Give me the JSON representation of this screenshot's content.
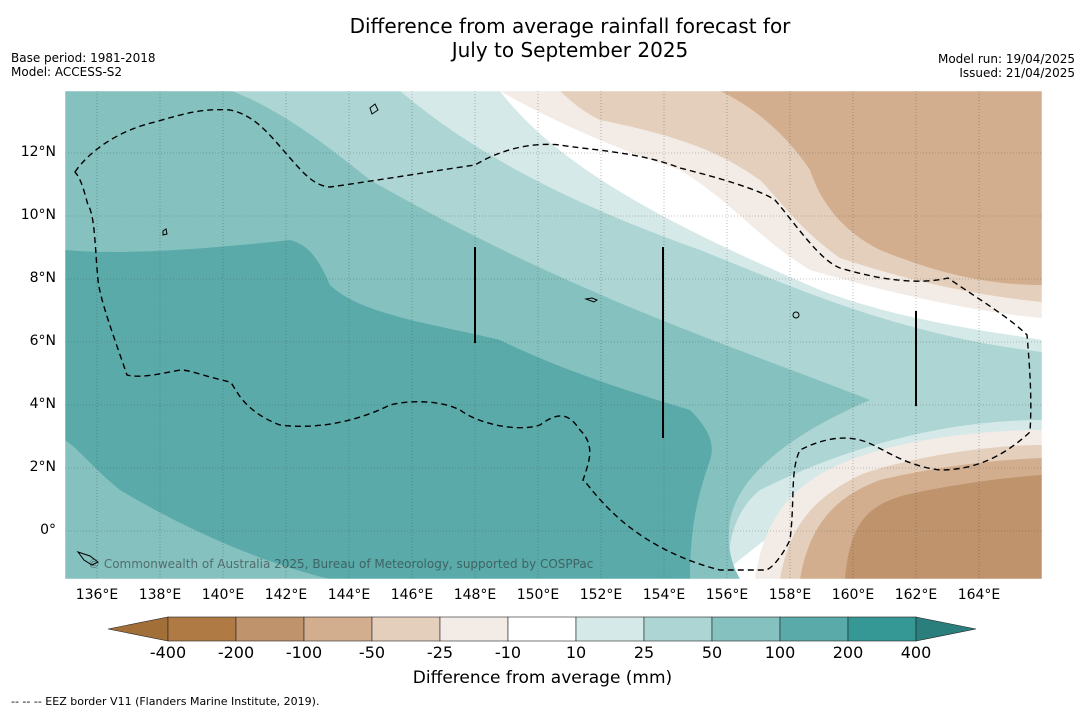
{
  "title_line1": "Difference from average rainfall forecast for",
  "title_line2": "July to September 2025",
  "meta_left": {
    "base_period": "Base period: 1981-2018",
    "model": "Model: ACCESS-S2"
  },
  "meta_right": {
    "model_run": "Model run: 19/04/2025",
    "issued": "Issued: 21/04/2025"
  },
  "map": {
    "lat_labels": [
      "12°N",
      "10°N",
      "8°N",
      "6°N",
      "4°N",
      "2°N",
      "0°"
    ],
    "lon_labels": [
      "136°E",
      "138°E",
      "140°E",
      "142°E",
      "144°E",
      "146°E",
      "148°E",
      "150°E",
      "152°E",
      "154°E",
      "156°E",
      "158°E",
      "160°E",
      "162°E",
      "164°E"
    ],
    "copyright": "© Commonwealth of Australia 2025, Bureau of Meteorology, supported by COSPPac"
  },
  "colorbar": {
    "ticks": [
      "-400",
      "-200",
      "-100",
      "-50",
      "-25",
      "-10",
      "10",
      "25",
      "50",
      "100",
      "200",
      "400"
    ],
    "colors": [
      "#a26f38",
      "#b07a45",
      "#bf936b",
      "#d2ae8e",
      "#e4cfbc",
      "#f3ebe5",
      "#ffffff",
      "#d6e9e9",
      "#acd5d4",
      "#84c1bf",
      "#5aaaaa",
      "#359894",
      "#2a7f7c"
    ],
    "title": "Difference from average (mm)"
  },
  "footnote": "--  --  -- EEZ border V11 (Flanders Marine Institute, 2019)."
}
